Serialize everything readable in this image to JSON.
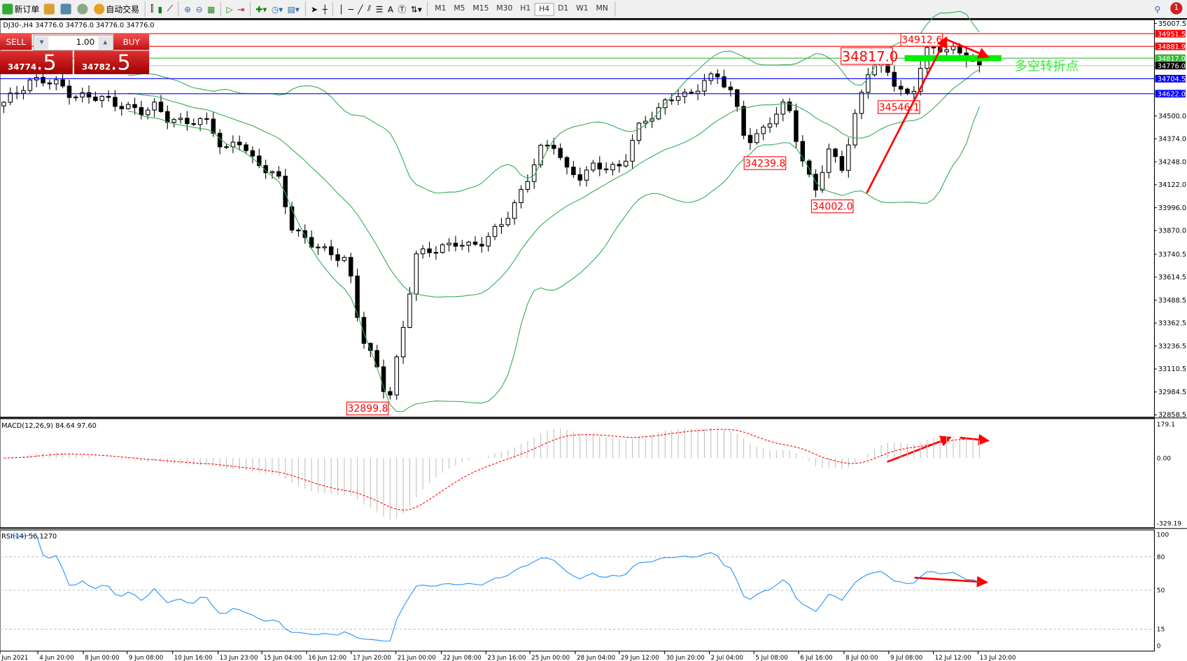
{
  "toolbar": {
    "new_order": "新订单",
    "auto_trading": "自动交易",
    "timeframes": [
      "M1",
      "M5",
      "M15",
      "M30",
      "H1",
      "H4",
      "D1",
      "W1",
      "MN"
    ],
    "active_timeframe": "H4",
    "notifications": "1"
  },
  "chart": {
    "info": "DJ30-,H4  34776.0 34776.0 34776.0 34776.0",
    "symbol": "DJ30-",
    "timeframe": "H4"
  },
  "trade_panel": {
    "sell_label": "SELL",
    "buy_label": "BUY",
    "lot": "1.00",
    "sell_main": "34774",
    "sell_frac": ".5",
    "buy_main": "34782",
    "buy_frac": ".5"
  },
  "price_axis": [
    "35007.5",
    "34500.0",
    "34374.0",
    "34248.0",
    "34122.0",
    "33996.0",
    "33870.0",
    "33740.5",
    "33614.5",
    "33488.5",
    "33362.5",
    "33236.5",
    "33110.5",
    "32984.5",
    "32858.5"
  ],
  "price_levels": [
    {
      "value": 34951.5,
      "label": "34951.5",
      "color": "#ff0000"
    },
    {
      "value": 34881.9,
      "label": "34881.9",
      "color": "#ff0000"
    },
    {
      "value": 34817.0,
      "label": "34817.0",
      "color": "#33bb33"
    },
    {
      "value": 34776.0,
      "label": "34776.0",
      "color": "#000000"
    },
    {
      "value": 34704.5,
      "label": "34704.5",
      "color": "#0000ff"
    },
    {
      "value": 34622.0,
      "label": "34622.0",
      "color": "#0000ff"
    }
  ],
  "annotations": [
    {
      "text": "34912.6",
      "value": 34912.6,
      "big": false
    },
    {
      "text": "34817.0",
      "value": 34817.0,
      "big": true
    },
    {
      "text": "34546.1",
      "value": 34546.1,
      "big": false
    },
    {
      "text": "34239.8",
      "value": 34239.8,
      "big": false
    },
    {
      "text": "34002.0",
      "value": 34002.0,
      "big": false
    },
    {
      "text": "32899.8",
      "value": 32899.8,
      "big": false
    }
  ],
  "turning_point_label": "多空转折点",
  "closes": [
    34575,
    34620,
    34680,
    34700,
    34690,
    34617,
    34600,
    34590,
    34560,
    34555,
    34540,
    34560,
    34470,
    34450,
    34470,
    34480,
    34305,
    34380,
    34250,
    34200,
    34160,
    33890,
    33830,
    33765,
    33720,
    33700,
    33307,
    33162,
    32933,
    33300,
    33723,
    33760,
    33790,
    33820,
    33780,
    33800,
    33880,
    33990,
    34150,
    34325,
    34340,
    34180,
    34160,
    34240,
    34230,
    34220,
    34410,
    34480,
    34560,
    34637,
    34620,
    34700,
    34700,
    34620,
    34367,
    34410,
    34510,
    34570,
    34263,
    34075,
    34320,
    34230,
    34512,
    34762,
    34770,
    34660,
    34600,
    34866,
    34870,
    34850,
    34820,
    34776
  ],
  "macd": {
    "label": "MACD(12,26,9) 84.64 97.60",
    "axis": [
      "179.1",
      "0.00",
      "-329.19"
    ]
  },
  "rsi": {
    "label": "RSI(14) 56.1270",
    "axis": [
      "100",
      "80",
      "50",
      "15",
      "0"
    ]
  },
  "time_axis": [
    "Jun 2021",
    "4 Jun 20:00",
    "8 Jun 00:00",
    "9 Jun 08:00",
    "10 Jun 16:00",
    "13 Jun 23:00",
    "15 Jun 04:00",
    "16 Jun 12:00",
    "17 Jun 20:00",
    "21 Jun 00:00",
    "22 Jun 08:00",
    "23 Jun 16:00",
    "25 Jun 00:00",
    "28 Jun 04:00",
    "29 Jun 12:00",
    "30 Jun 20:00",
    "2 Jul 04:00",
    "5 Jul 08:00",
    "6 Jul 16:00",
    "8 Jul 00:00",
    "9 Jul 08:00",
    "12 Jul 12:00",
    "13 Jul 20:00"
  ],
  "colors": {
    "bands": "#33aa55",
    "arrow": "#ff0000",
    "turning_zone": "#00ee00",
    "rsi": "#1e90ff",
    "macd_signal": "#ff0000",
    "macd_hist": "#c0c0c0"
  }
}
